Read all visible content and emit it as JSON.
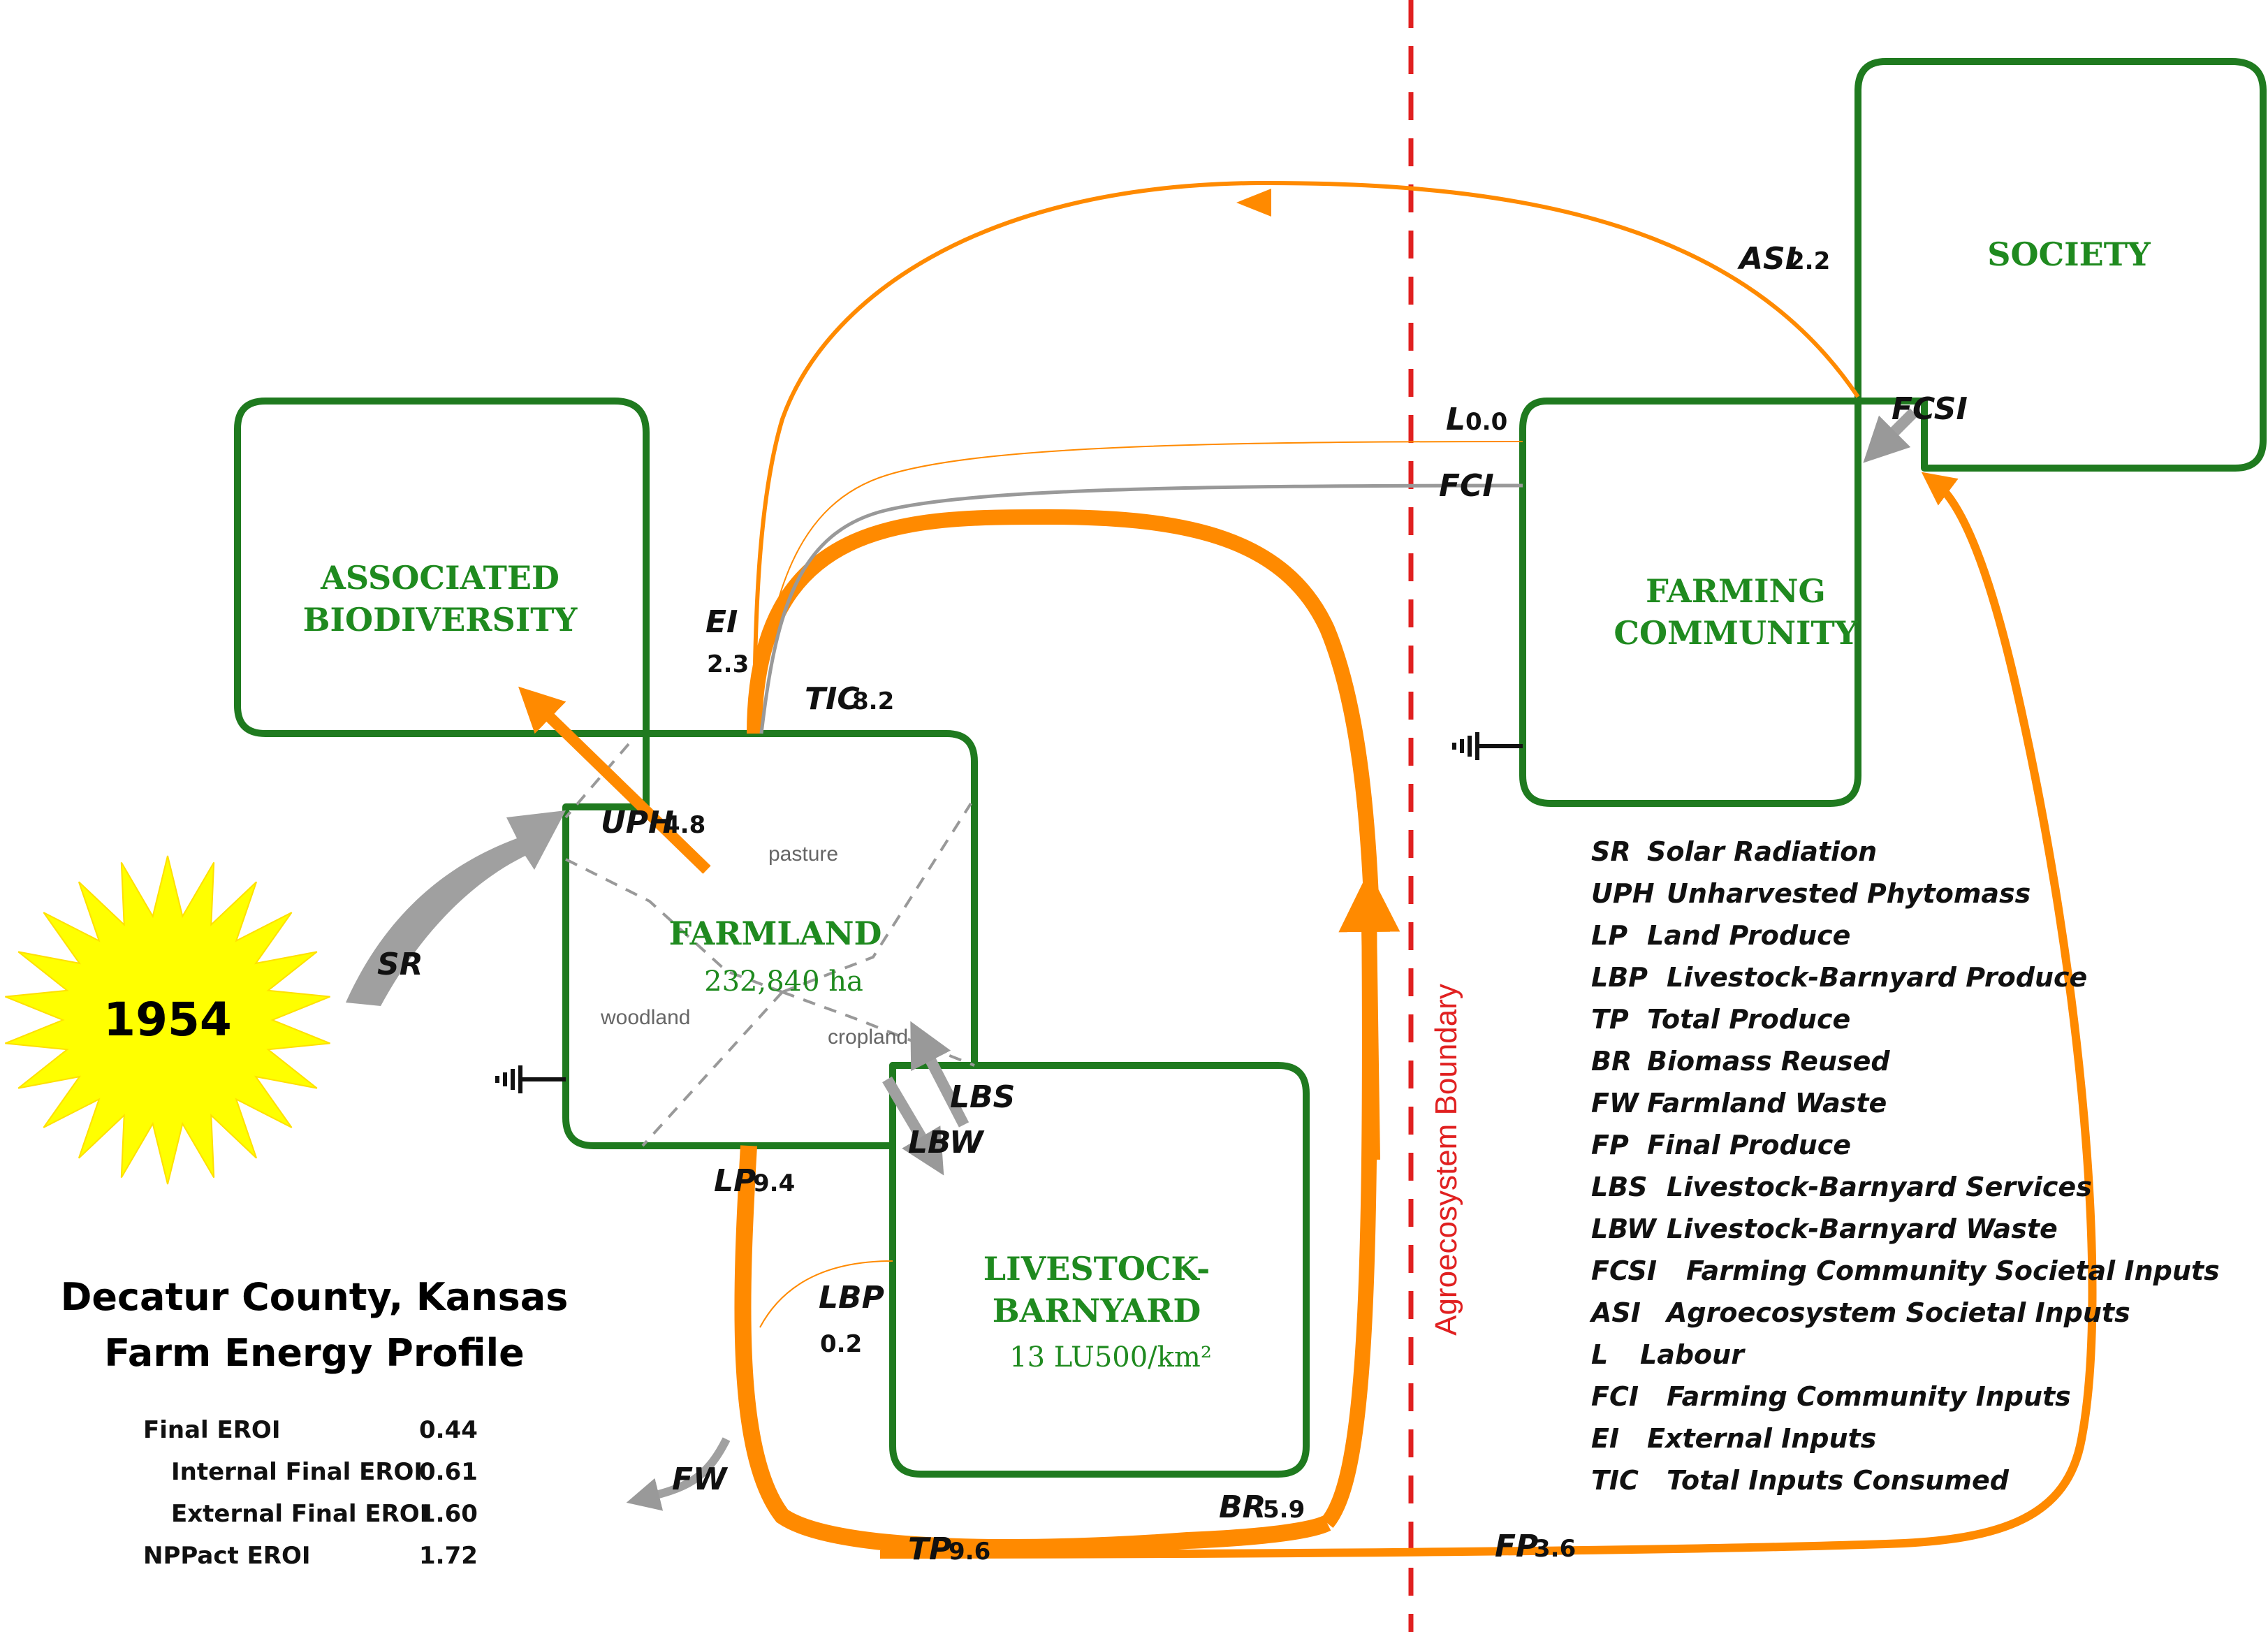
{
  "year": "1954",
  "county_title": "Decatur County, Kansas",
  "profile_title": "Farm Energy Profile",
  "boxes": {
    "associated_biodiversity": {
      "line1": "ASSOCIATED",
      "line2": "BIODIVERSITY"
    },
    "farmland": {
      "title": "FARMLAND",
      "area": "232,840 ha",
      "zones": {
        "pasture": "pasture",
        "woodland": "woodland",
        "cropland": "cropland"
      }
    },
    "livestock": {
      "line1": "LIVESTOCK-",
      "line2": "BARNYARD",
      "density": "13 LU500/km²"
    },
    "farming_community": {
      "line1": "FARMING",
      "line2": "COMMUNITY"
    },
    "society": {
      "title": "SOCIETY"
    }
  },
  "boundary_label": "Agroecosystem Boundary",
  "flows": {
    "SR": {
      "name": "SR"
    },
    "UPH": {
      "name": "UPH",
      "value": "4.8"
    },
    "EI": {
      "name": "EI",
      "value": "2.3"
    },
    "TIC": {
      "name": "TIC",
      "value": "8.2"
    },
    "ASI": {
      "name": "ASI",
      "value": "2.2"
    },
    "L": {
      "name": "L",
      "value": "0.0"
    },
    "FCI": {
      "name": "FCI"
    },
    "FCSI": {
      "name": "FCSI"
    },
    "LBS": {
      "name": "LBS"
    },
    "LBW": {
      "name": "LBW"
    },
    "LP": {
      "name": "LP",
      "value": "9.4"
    },
    "LBP": {
      "name": "LBP",
      "value": "0.2"
    },
    "FW": {
      "name": "FW"
    },
    "TP": {
      "name": "TP",
      "value": "9.6"
    },
    "BR": {
      "name": "BR",
      "value": "5.9"
    },
    "FP": {
      "name": "FP",
      "value": "3.6"
    }
  },
  "legend": [
    {
      "abbr": "SR",
      "desc": "Solar Radiation"
    },
    {
      "abbr": "UPH",
      "desc": "Unharvested Phytomass"
    },
    {
      "abbr": "LP",
      "desc": "Land Produce"
    },
    {
      "abbr": "LBP",
      "desc": "Livestock-Barnyard Produce"
    },
    {
      "abbr": "TP",
      "desc": "Total Produce"
    },
    {
      "abbr": "BR",
      "desc": "Biomass Reused"
    },
    {
      "abbr": "FW",
      "desc": "Farmland  Waste"
    },
    {
      "abbr": "FP",
      "desc": "Final Produce"
    },
    {
      "abbr": "LBS",
      "desc": "Livestock-Barnyard Services"
    },
    {
      "abbr": "LBW",
      "desc": "Livestock-Barnyard Waste"
    },
    {
      "abbr": "FCSI",
      "desc": "Farming Community Societal Inputs"
    },
    {
      "abbr": "ASI",
      "desc": "Agroecosystem Societal Inputs"
    },
    {
      "abbr": "L",
      "desc": "Labour"
    },
    {
      "abbr": "FCI",
      "desc": "Farming Community Inputs"
    },
    {
      "abbr": "EI",
      "desc": "External Inputs"
    },
    {
      "abbr": "TIC",
      "desc": "Total Inputs Consumed"
    }
  ],
  "eroi": [
    {
      "label": "Final EROI",
      "value": "0.44"
    },
    {
      "label": "Internal Final EROI",
      "value": "0.61"
    },
    {
      "label": "External Final EROI",
      "value": "1.60"
    },
    {
      "label": "NPPact EROI",
      "value": "1.72"
    }
  ],
  "colors": {
    "box_stroke": "#1f7a1f",
    "flow": "#ff8a00",
    "gray": "#999999",
    "boundary": "#e02020",
    "sun": "#ffff00"
  }
}
